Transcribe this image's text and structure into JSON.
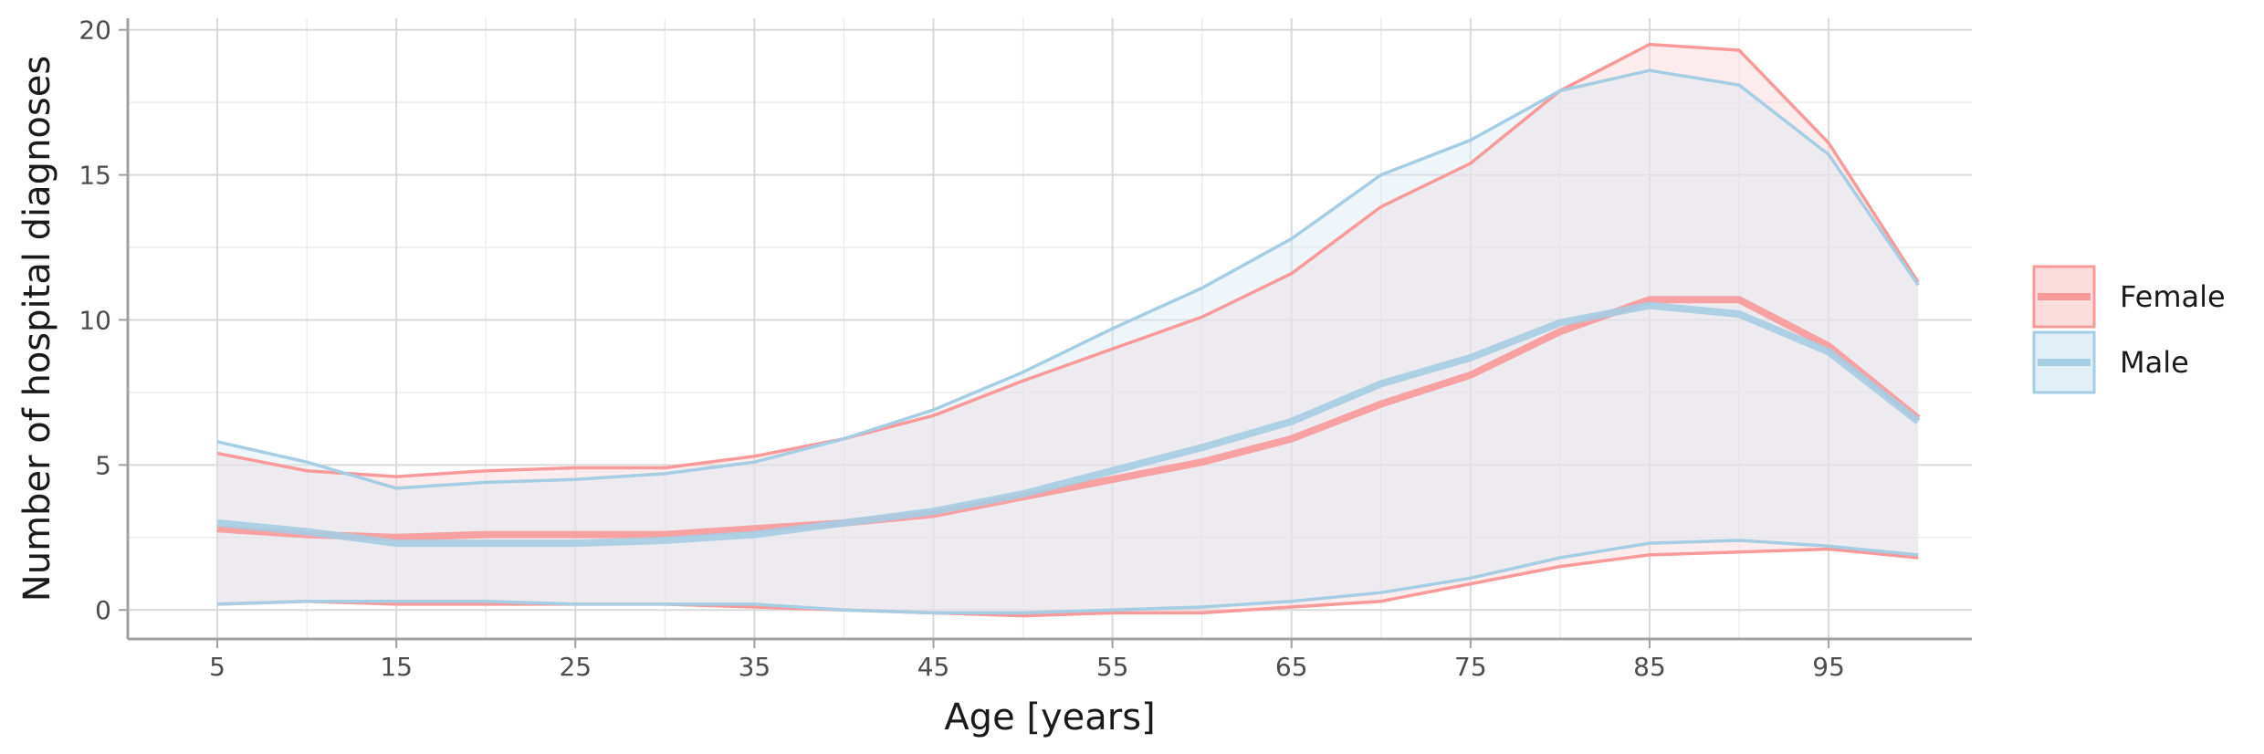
{
  "chart_data": {
    "type": "area",
    "xlabel": "Age [years]",
    "ylabel": "Number of hospital diagnoses",
    "xlim": [
      0,
      103
    ],
    "ylim": [
      -1,
      20.4
    ],
    "x_ticks": [
      5,
      15,
      25,
      35,
      45,
      55,
      65,
      75,
      85,
      95
    ],
    "y_ticks": [
      0,
      5,
      10,
      15,
      20
    ],
    "x": [
      5,
      10,
      15,
      20,
      25,
      30,
      35,
      40,
      45,
      50,
      55,
      60,
      65,
      70,
      75,
      80,
      85,
      90,
      95,
      100
    ],
    "grid": true,
    "legend_position": "right",
    "series": [
      {
        "name": "Female",
        "line_color": "#f8999a",
        "fill_color": "#fbd5d6",
        "mean": [
          2.8,
          2.6,
          2.5,
          2.6,
          2.6,
          2.6,
          2.8,
          3.0,
          3.3,
          3.9,
          4.5,
          5.1,
          5.9,
          7.1,
          8.1,
          9.6,
          10.7,
          10.7,
          9.1,
          6.6
        ],
        "upper": [
          5.4,
          4.8,
          4.6,
          4.8,
          4.9,
          4.9,
          5.3,
          5.9,
          6.7,
          7.9,
          9.0,
          10.1,
          11.6,
          13.9,
          15.4,
          17.9,
          19.5,
          19.3,
          16.1,
          11.3
        ],
        "lower": [
          0.2,
          0.3,
          0.2,
          0.2,
          0.2,
          0.2,
          0.1,
          0.0,
          -0.1,
          -0.2,
          -0.1,
          -0.1,
          0.1,
          0.3,
          0.9,
          1.5,
          1.9,
          2.0,
          2.1,
          1.8
        ]
      },
      {
        "name": "Male",
        "line_color": "#a5cde3",
        "fill_color": "#d9ebf5",
        "mean": [
          3.0,
          2.7,
          2.3,
          2.3,
          2.3,
          2.4,
          2.6,
          3.0,
          3.4,
          4.0,
          4.8,
          5.6,
          6.5,
          7.8,
          8.7,
          9.9,
          10.5,
          10.2,
          8.9,
          6.5
        ],
        "upper": [
          5.8,
          5.1,
          4.2,
          4.4,
          4.5,
          4.7,
          5.1,
          5.9,
          6.9,
          8.2,
          9.7,
          11.1,
          12.8,
          15.0,
          16.2,
          17.9,
          18.6,
          18.1,
          15.7,
          11.2
        ],
        "lower": [
          0.2,
          0.3,
          0.3,
          0.3,
          0.2,
          0.2,
          0.2,
          0.0,
          -0.1,
          -0.1,
          0.0,
          0.1,
          0.3,
          0.6,
          1.1,
          1.8,
          2.3,
          2.4,
          2.2,
          1.9
        ]
      }
    ]
  }
}
